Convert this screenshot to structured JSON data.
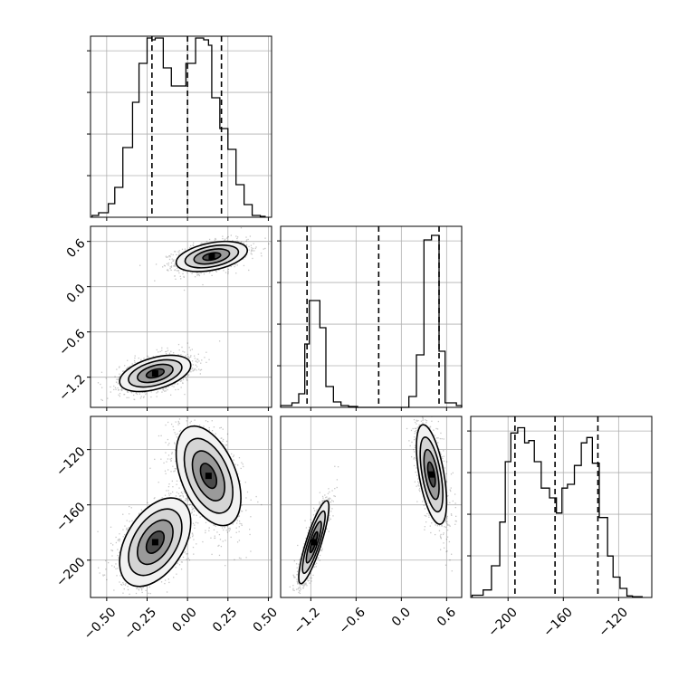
{
  "chart_data": {
    "type": "corner",
    "n_params": 3,
    "grid": true,
    "colors": {
      "line": "#000000",
      "grid": "#b0b0b0",
      "fill_levels": [
        "#f2f2f2",
        "#d4d4d4",
        "#9a9a9a",
        "#4a4a4a",
        "#000000"
      ]
    },
    "axes": [
      {
        "label": "",
        "range": [
          -0.6,
          0.52
        ],
        "ticks": [
          -0.5,
          -0.25,
          0.0,
          0.25,
          0.5
        ],
        "tick_labels": [
          "−0.50",
          "−0.25",
          "0.00",
          "0.25",
          "0.50"
        ]
      },
      {
        "label": "",
        "range": [
          -1.6,
          0.8
        ],
        "ticks": [
          -1.2,
          -0.6,
          0.0,
          0.6
        ],
        "tick_labels": [
          "−1.2",
          "−0.6",
          "0.0",
          "0.6"
        ]
      },
      {
        "label": "",
        "range": [
          -227,
          -96
        ],
        "ticks": [
          -200,
          -160,
          -120
        ],
        "tick_labels": [
          "−200",
          "−160",
          "−120"
        ]
      }
    ],
    "marginals": [
      {
        "param": 0,
        "bin_edges": [
          -0.59,
          -0.55,
          -0.49,
          -0.45,
          -0.4,
          -0.34,
          -0.3,
          -0.25,
          -0.22,
          -0.2,
          -0.15,
          -0.1,
          -0.05,
          -0.01,
          0.05,
          0.1,
          0.13,
          0.15,
          0.2,
          0.25,
          0.3,
          0.35,
          0.4,
          0.45,
          0.48
        ],
        "counts": [
          2,
          5,
          15,
          33,
          77,
          127,
          170,
          198,
          196,
          198,
          165,
          145,
          145,
          170,
          198,
          196,
          190,
          132,
          98,
          75,
          36,
          14,
          2,
          1
        ],
        "ylim": [
          0,
          200
        ],
        "quantiles": [
          -0.22,
          0.0,
          0.21
        ]
      },
      {
        "param": 1,
        "bin_edges": [
          -1.6,
          -1.45,
          -1.36,
          -1.28,
          -1.22,
          -1.08,
          -1.0,
          -0.9,
          -0.8,
          -0.7,
          -0.58,
          0.1,
          0.2,
          0.3,
          0.4,
          0.5,
          0.58,
          0.73,
          0.8
        ],
        "counts": [
          2,
          5,
          15,
          70,
          118,
          88,
          23,
          6,
          2,
          1,
          0,
          12,
          58,
          185,
          190,
          62,
          5,
          2
        ],
        "ylim": [
          0,
          200
        ],
        "quantiles": [
          -1.25,
          -0.3,
          0.5
        ]
      },
      {
        "param": 2,
        "bin_edges": [
          -226,
          -218,
          -212,
          -206,
          -202,
          -198,
          -193,
          -188,
          -185,
          -181,
          -176,
          -170,
          -165,
          -161,
          -157,
          -152,
          -147,
          -143,
          -139,
          -134,
          -128,
          -124,
          -119,
          -114,
          -110,
          -103
        ],
        "counts": [
          3,
          10,
          42,
          100,
          180,
          218,
          225,
          205,
          208,
          180,
          145,
          132,
          112,
          145,
          150,
          175,
          205,
          212,
          178,
          106,
          55,
          27,
          12,
          2,
          1
        ],
        "ylim": [
          0,
          240
        ],
        "quantiles": [
          -195,
          -166,
          -135
        ]
      }
    ],
    "joint": [
      {
        "x_param": 0,
        "y_param": 1,
        "modes": [
          {
            "mean": [
              0.15,
              0.4
            ],
            "sx": 0.11,
            "sy": 0.1,
            "rho": 0.4,
            "weight": 0.5
          },
          {
            "mean": [
              -0.2,
              -1.15
            ],
            "sx": 0.11,
            "sy": 0.12,
            "rho": 0.45,
            "weight": 0.5
          }
        ]
      },
      {
        "x_param": 0,
        "y_param": 2,
        "modes": [
          {
            "mean": [
              0.13,
              -139
            ],
            "sx": 0.1,
            "sy": 18,
            "rho": -0.45,
            "weight": 0.5
          },
          {
            "mean": [
              -0.2,
              -187
            ],
            "sx": 0.11,
            "sy": 16,
            "rho": 0.45,
            "weight": 0.5
          }
        ]
      },
      {
        "x_param": 1,
        "y_param": 2,
        "modes": [
          {
            "mean": [
              0.4,
              -138
            ],
            "sx": 0.1,
            "sy": 18,
            "rho": -0.55,
            "weight": 0.5
          },
          {
            "mean": [
              -1.16,
              -187
            ],
            "sx": 0.1,
            "sy": 15,
            "rho": 0.85,
            "weight": 0.5
          }
        ]
      }
    ]
  }
}
